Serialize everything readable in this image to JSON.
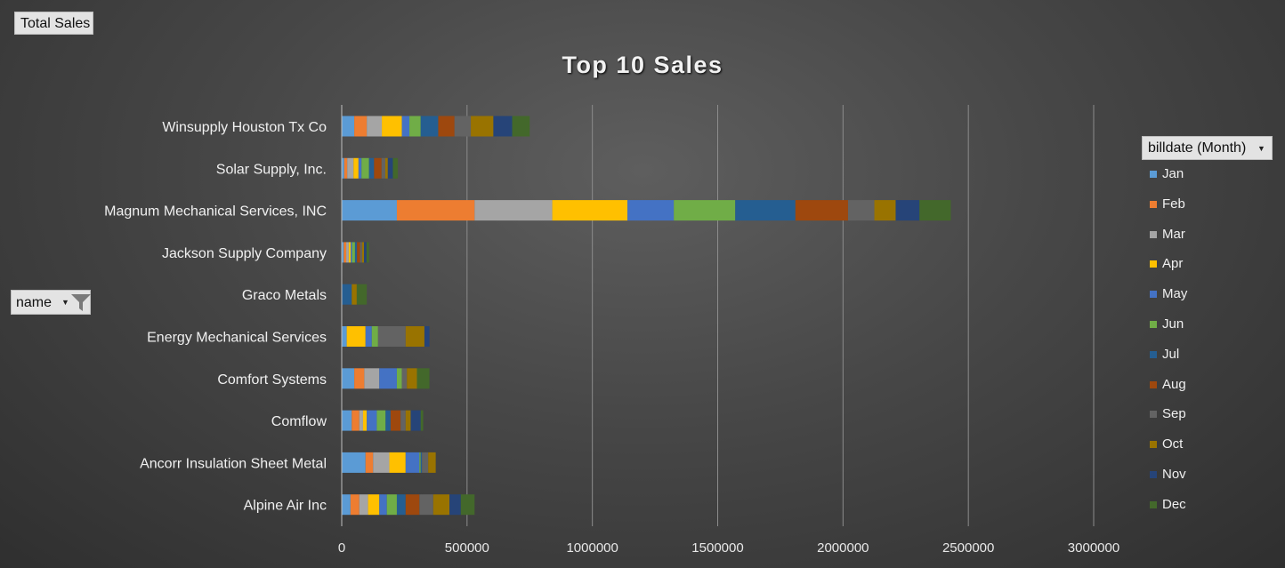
{
  "pivot": {
    "values_field": "Total Sales",
    "row_field": "name",
    "legend_field": "billdate (Month)"
  },
  "chart_data": {
    "type": "bar",
    "orientation": "horizontal",
    "stacked": true,
    "title": "Top 10 Sales",
    "xlabel": "",
    "ylabel": "",
    "xlim": [
      0,
      3000000
    ],
    "xticks": [
      0,
      500000,
      1000000,
      1500000,
      2000000,
      2500000,
      3000000
    ],
    "grid": true,
    "legend_position": "right",
    "categories": [
      "Winsupply Houston Tx Co",
      "Solar Supply, Inc.",
      "Magnum Mechanical Services, INC",
      "Jackson Supply Company",
      "Graco Metals",
      "Energy Mechanical Services",
      "Comfort Systems",
      "Comflow",
      "Ancorr Insulation Sheet Metal",
      "Alpine Air Inc"
    ],
    "series": [
      {
        "name": "Jan",
        "color": "#5b9bd5",
        "values": [
          50000,
          10000,
          220000,
          8000,
          0,
          20000,
          50000,
          40000,
          95000,
          35000
        ]
      },
      {
        "name": "Feb",
        "color": "#ed7d31",
        "values": [
          50000,
          12000,
          310000,
          10000,
          0,
          0,
          40000,
          30000,
          30000,
          35000
        ]
      },
      {
        "name": "Mar",
        "color": "#a5a5a5",
        "values": [
          60000,
          25000,
          310000,
          10000,
          0,
          0,
          60000,
          15000,
          65000,
          35000
        ]
      },
      {
        "name": "Apr",
        "color": "#ffc000",
        "values": [
          80000,
          20000,
          300000,
          8000,
          0,
          75000,
          0,
          15000,
          65000,
          45000
        ]
      },
      {
        "name": "May",
        "color": "#4472c4",
        "values": [
          30000,
          12000,
          185000,
          5000,
          0,
          25000,
          70000,
          40000,
          55000,
          30000
        ]
      },
      {
        "name": "Jun",
        "color": "#70ad47",
        "values": [
          45000,
          30000,
          245000,
          12000,
          0,
          25000,
          20000,
          35000,
          5000,
          40000
        ]
      },
      {
        "name": "Jul",
        "color": "#255e91",
        "values": [
          70000,
          20000,
          240000,
          8000,
          40000,
          0,
          0,
          20000,
          5000,
          35000
        ]
      },
      {
        "name": "Aug",
        "color": "#9e480e",
        "values": [
          65000,
          30000,
          210000,
          12000,
          0,
          0,
          0,
          40000,
          0,
          55000
        ]
      },
      {
        "name": "Sep",
        "color": "#636363",
        "values": [
          65000,
          15000,
          105000,
          8000,
          0,
          110000,
          20000,
          20000,
          25000,
          55000
        ]
      },
      {
        "name": "Oct",
        "color": "#997300",
        "values": [
          90000,
          10000,
          85000,
          8000,
          20000,
          75000,
          40000,
          20000,
          30000,
          65000
        ]
      },
      {
        "name": "Nov",
        "color": "#264478",
        "values": [
          75000,
          20000,
          95000,
          10000,
          0,
          20000,
          0,
          40000,
          0,
          45000
        ]
      },
      {
        "name": "Dec",
        "color": "#43682b",
        "values": [
          70000,
          20000,
          125000,
          10000,
          40000,
          0,
          50000,
          10000,
          0,
          55000
        ]
      }
    ]
  }
}
